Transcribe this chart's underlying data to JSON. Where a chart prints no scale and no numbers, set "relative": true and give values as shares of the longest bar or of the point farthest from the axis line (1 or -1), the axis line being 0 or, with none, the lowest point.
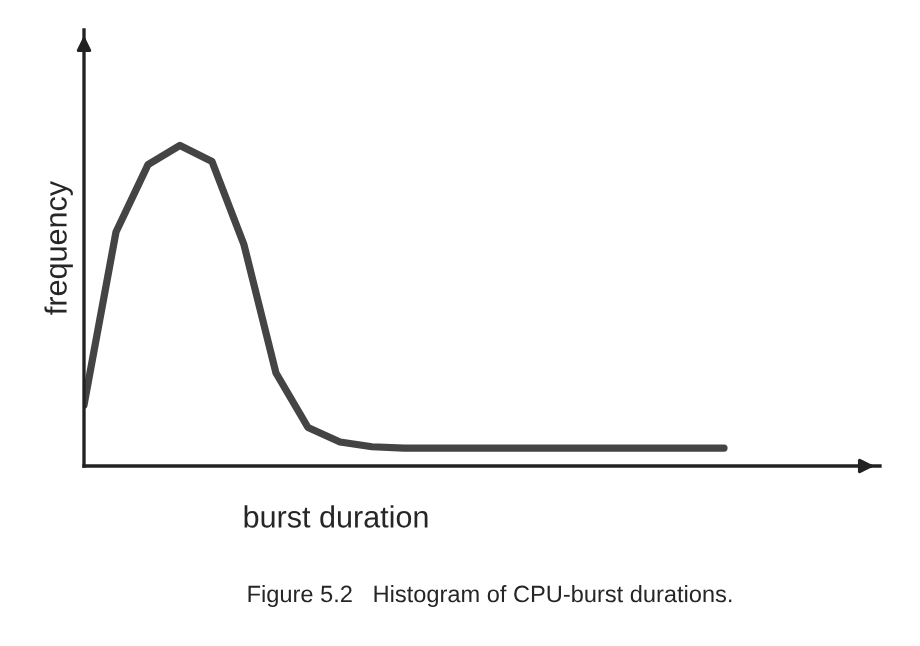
{
  "chart_data": {
    "type": "line",
    "relative": true,
    "xlabel": "burst duration",
    "ylabel": "frequency",
    "annotations": [
      "Figure 5.2   Histogram of CPU-burst durations."
    ],
    "categories": [
      null,
      null,
      null,
      null,
      null,
      null,
      null,
      null,
      null,
      null,
      null,
      null,
      null,
      null,
      null,
      null,
      null,
      null,
      null,
      null,
      null
    ],
    "series": [
      {
        "color": "#444444",
        "values": [
          0.19,
          0.73,
          0.94,
          1.0,
          0.95,
          0.69,
          0.29,
          0.12,
          0.075,
          0.06,
          0.056,
          0.056,
          0.056,
          0.056,
          0.056,
          0.056,
          0.056,
          0.056,
          0.056,
          0.056,
          0.056
        ]
      }
    ],
    "tick_labels": false,
    "marker": "none",
    "line_style": "solid"
  }
}
